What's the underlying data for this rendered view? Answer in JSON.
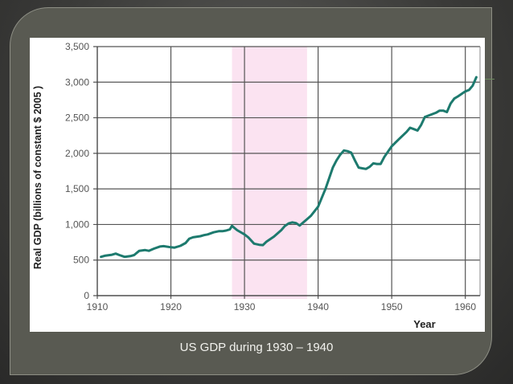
{
  "slide": {
    "caption": "US GDP during 1930 – 1940",
    "background_color": "#595a52",
    "line_color": "#1d7a6e",
    "highlight_color": "#fbe3f1"
  },
  "chart_data": {
    "type": "line",
    "title": "",
    "xlabel": "Year",
    "ylabel": "Real GDP (billions of constant $ 2005 )",
    "xlim": [
      1910,
      1962
    ],
    "ylim": [
      0,
      3500
    ],
    "x_ticks": [
      "1910",
      "1920",
      "1930",
      "1940",
      "1950",
      "1960"
    ],
    "y_ticks": [
      "0",
      "500",
      "1,000",
      "1,500",
      "2,000",
      "2,500",
      "3,000",
      "3,500"
    ],
    "grid": true,
    "legend": null,
    "shaded_region": {
      "x_start": 1928.3,
      "x_end": 1938.5,
      "color": "#fbe3f1"
    },
    "series": [
      {
        "name": "Real GDP",
        "x": [
          1910.5,
          1911,
          1912,
          1912.5,
          1913,
          1913.7,
          1914.5,
          1915,
          1915.7,
          1916.5,
          1917,
          1917.7,
          1918.5,
          1919,
          1920,
          1920.5,
          1921.3,
          1922,
          1922.5,
          1923,
          1924,
          1924.5,
          1925,
          1925.8,
          1926.5,
          1927,
          1927.5,
          1928,
          1928.3,
          1929,
          1930,
          1930.5,
          1931.3,
          1932,
          1932.5,
          1933,
          1934,
          1935,
          1935.5,
          1936,
          1936.5,
          1937,
          1937.5,
          1938,
          1939,
          1940,
          1941,
          1942,
          1942.5,
          1943,
          1943.5,
          1944,
          1944.5,
          1945,
          1945.5,
          1946,
          1946.5,
          1947,
          1947.5,
          1948,
          1948.5,
          1949,
          1950,
          1951,
          1952,
          1952.5,
          1953,
          1953.5,
          1954,
          1954.5,
          1955,
          1956,
          1956.5,
          1957,
          1957.5,
          1958,
          1958.5,
          1959,
          1960,
          1960.5,
          1961,
          1961.5
        ],
        "values": [
          545,
          560,
          575,
          590,
          570,
          545,
          555,
          570,
          630,
          640,
          630,
          660,
          690,
          695,
          680,
          675,
          700,
          740,
          800,
          820,
          835,
          850,
          860,
          890,
          905,
          905,
          915,
          930,
          980,
          920,
          860,
          820,
          730,
          715,
          710,
          760,
          830,
          920,
          980,
          1015,
          1030,
          1020,
          985,
          1030,
          1120,
          1250,
          1500,
          1800,
          1900,
          1980,
          2040,
          2030,
          2010,
          1900,
          1800,
          1790,
          1780,
          1810,
          1860,
          1850,
          1850,
          1950,
          2100,
          2200,
          2300,
          2360,
          2340,
          2320,
          2400,
          2510,
          2530,
          2570,
          2600,
          2600,
          2580,
          2700,
          2770,
          2800,
          2870,
          2890,
          2950,
          3070
        ]
      }
    ]
  }
}
